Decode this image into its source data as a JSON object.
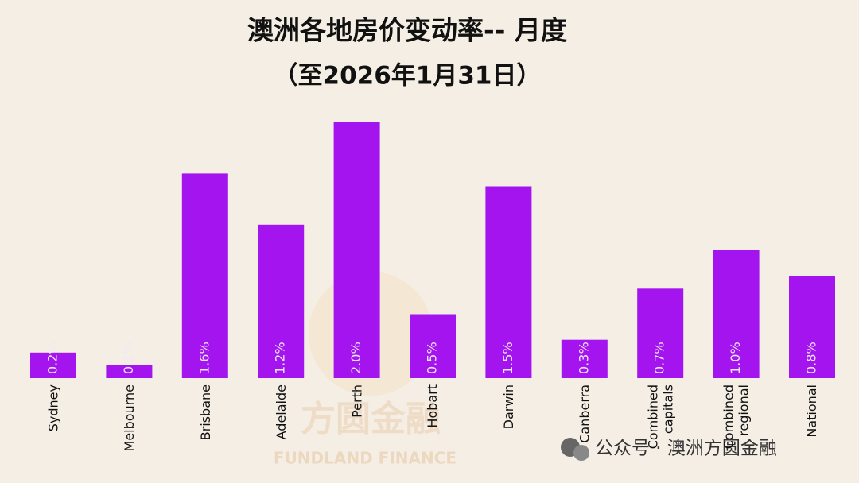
{
  "chart_data": {
    "type": "bar",
    "title": "澳洲各地房价变动率-- 月度",
    "subtitle": "（至2026年1月31日）",
    "categories": [
      "Sydney",
      "Melbourne",
      "Brisbane",
      "Adelaide",
      "Perth",
      "Hobart",
      "Darwin",
      "Canberra",
      "Combined\ncapitals",
      "Combined\nregional",
      "National"
    ],
    "values": [
      0.2,
      0.1,
      1.6,
      1.2,
      2.0,
      0.5,
      1.5,
      0.3,
      0.7,
      1.0,
      0.8
    ],
    "value_labels": [
      "0.2%",
      "0.1%",
      "1.6%",
      "1.2%",
      "2.0%",
      "0.5%",
      "1.5%",
      "0.3%",
      "0.7%",
      "1.0%",
      "0.8%"
    ],
    "color": "#a314ef"
  },
  "watermark": {
    "logo_text": "方圆金融",
    "logo_subtext": "FUNDLAND FINANCE",
    "footer": "公众号 · 澳洲方圆金融"
  }
}
